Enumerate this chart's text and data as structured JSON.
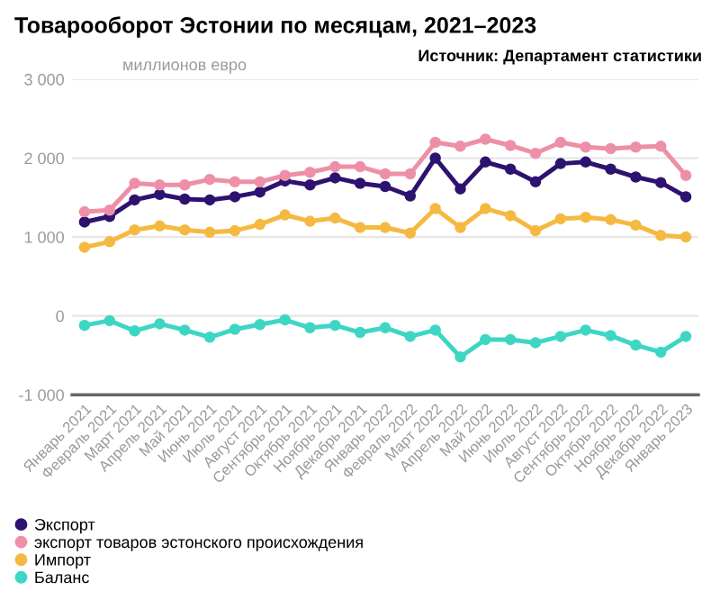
{
  "chart_data": {
    "type": "line",
    "title": "Товарооборот Эстонии по месяцам, 2021–2023",
    "ylabel": "миллионов евро",
    "annotations": [
      "Источник: Департамент статистики"
    ],
    "categories": [
      "Январь 2021",
      "Февраль 2021",
      "Март 2021",
      "Апрель 2021",
      "Май 2021",
      "Июнь 2021",
      "Июль 2021",
      "Август 2021",
      "Сентябрь 2021",
      "Октябрь 2021",
      "Ноябрь 2021",
      "Декабрь 2021",
      "Январь 2022",
      "Февраль 2022",
      "Март 2022",
      "Апрель 2022",
      "Май 2022",
      "Июнь 2022",
      "Июль 2022",
      "Август 2022",
      "Сентябрь 2022",
      "Октябрь 2022",
      "Ноябрь 2022",
      "Декабрь 2022",
      "Январь 2023"
    ],
    "series": [
      {
        "name": "Экспорт",
        "color": "#2e1270",
        "values": [
          1190,
          1260,
          1470,
          1540,
          1480,
          1470,
          1510,
          1570,
          1710,
          1660,
          1750,
          1680,
          1640,
          1520,
          2000,
          1610,
          1950,
          1860,
          1700,
          1930,
          1950,
          1860,
          1760,
          1690,
          1510
        ]
      },
      {
        "name": "экспорт товаров эстонского происхождения",
        "color": "#ee8fa8",
        "values": [
          1320,
          1340,
          1680,
          1660,
          1660,
          1730,
          1700,
          1700,
          1780,
          1820,
          1890,
          1890,
          1800,
          1800,
          2200,
          2150,
          2240,
          2160,
          2060,
          2200,
          2140,
          2120,
          2140,
          2150,
          1780
        ]
      },
      {
        "name": "Импорт",
        "color": "#f5b942",
        "values": [
          870,
          940,
          1090,
          1140,
          1090,
          1060,
          1080,
          1160,
          1280,
          1200,
          1240,
          1120,
          1120,
          1050,
          1360,
          1120,
          1360,
          1270,
          1080,
          1230,
          1250,
          1220,
          1150,
          1020,
          1000
        ]
      },
      {
        "name": "Баланс",
        "color": "#3dd6c5",
        "values": [
          -120,
          -60,
          -190,
          -100,
          -180,
          -270,
          -170,
          -110,
          -50,
          -150,
          -120,
          -210,
          -150,
          -260,
          -180,
          -520,
          -300,
          -300,
          -340,
          -260,
          -180,
          -250,
          -370,
          -460,
          -260
        ]
      }
    ],
    "ylim": [
      -1000,
      3000
    ],
    "yticks": [
      {
        "value": -1000,
        "label": "-1 000"
      },
      0,
      {
        "value": 1000,
        "label": "1 000"
      },
      {
        "value": 2000,
        "label": "2 000"
      },
      {
        "value": 3000,
        "label": "3 000"
      }
    ],
    "grid": "y",
    "legend": "bottom",
    "marker": "circle",
    "line_style": "solid"
  }
}
